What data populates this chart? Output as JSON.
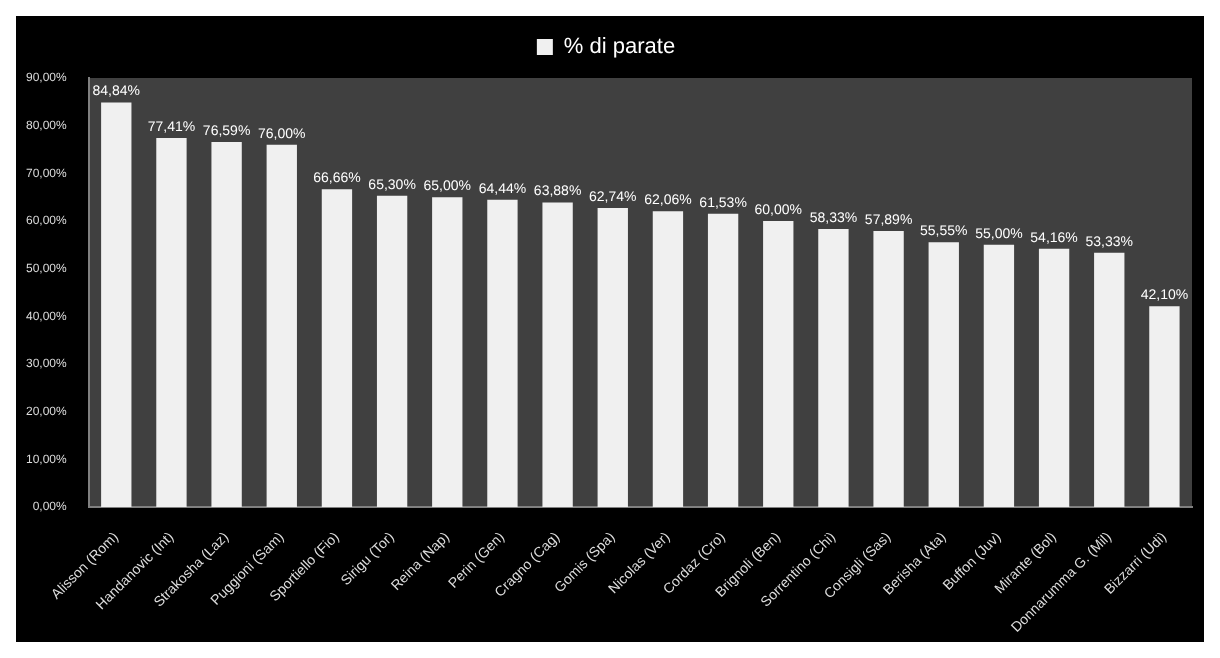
{
  "chart_data": {
    "type": "bar",
    "categories": [
      "Alisson (Rom)",
      "Handanovic (Int)",
      "Strakosha (Laz)",
      "Puggioni (Sam)",
      "Sportiello (Fio)",
      "Sirigu (Tor)",
      "Reina (Nap)",
      "Perin (Gen)",
      "Cragno (Cag)",
      "Gomis (Spa)",
      "Nicolas (Ver)",
      "Cordaz (Cro)",
      "Brignoli (Ben)",
      "Sorrentino (Chi)",
      "Consigli (Sas)",
      "Berisha (Ata)",
      "Buffon (Juv)",
      "Mirante (Bol)",
      "Donnarumma G. (Mil)",
      "Bizzarri (Udi)"
    ],
    "series": [
      {
        "name": "% di parate",
        "color": "#f0f0f0",
        "values": [
          84.84,
          77.41,
          76.59,
          76.0,
          66.66,
          65.3,
          65.0,
          64.44,
          63.88,
          62.74,
          62.06,
          61.53,
          60.0,
          58.33,
          57.89,
          55.55,
          55.0,
          54.16,
          53.33,
          42.1
        ],
        "value_labels": [
          "84,84%",
          "77,41%",
          "76,59%",
          "76,00%",
          "66,66%",
          "65,30%",
          "65,00%",
          "64,44%",
          "63,88%",
          "62,74%",
          "62,06%",
          "61,53%",
          "60,00%",
          "58,33%",
          "57,89%",
          "55,55%",
          "55,00%",
          "54,16%",
          "53,33%",
          "42,10%"
        ]
      }
    ],
    "ylim": [
      0,
      90
    ],
    "yticks": [
      {
        "value": 0,
        "label": "0,00%"
      },
      {
        "value": 10,
        "label": "10,00%"
      },
      {
        "value": 20,
        "label": "20,00%"
      },
      {
        "value": 30,
        "label": "30,00%"
      },
      {
        "value": 40,
        "label": "40,00%"
      },
      {
        "value": 50,
        "label": "50,00%"
      },
      {
        "value": 60,
        "label": "60,00%"
      },
      {
        "value": 70,
        "label": "70,00%"
      },
      {
        "value": 80,
        "label": "80,00%"
      },
      {
        "value": 90,
        "label": "90,00%"
      }
    ],
    "grid": false,
    "legend": "top"
  }
}
